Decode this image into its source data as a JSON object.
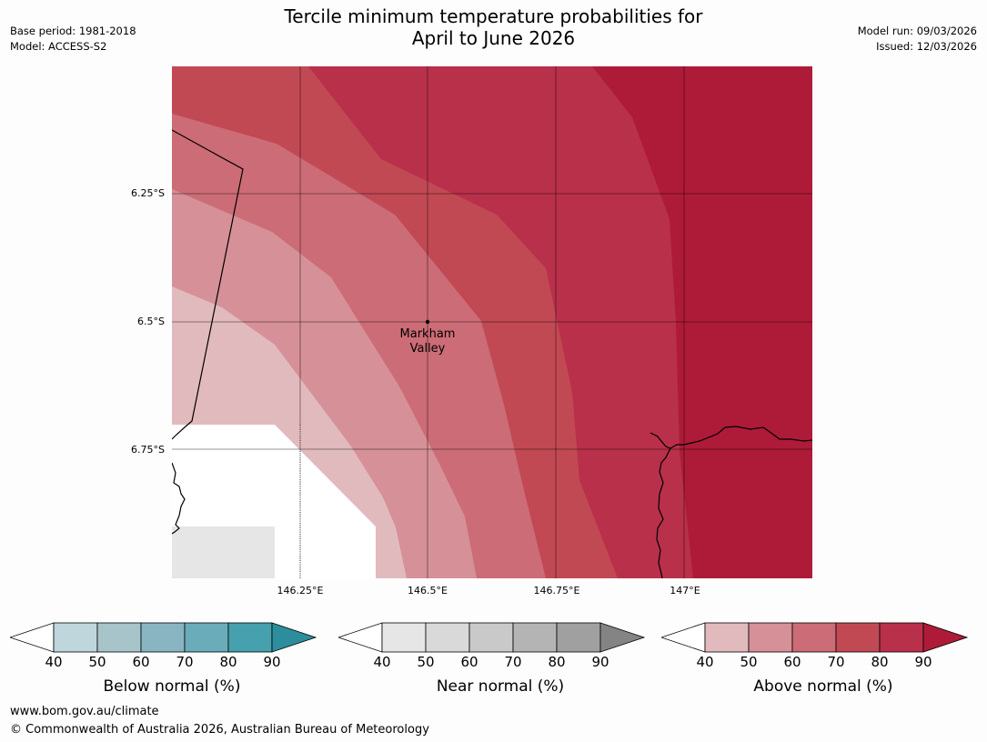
{
  "title_line1": "Tercile minimum temperature probabilities for",
  "title_line2": "April to June 2026",
  "meta": {
    "base_period": "Base period: 1981-2018",
    "model": "Model: ACCESS-S2",
    "model_run": "Model run: 09/03/2026",
    "issued": "Issued: 12/03/2026"
  },
  "map": {
    "lat_labels": [
      "6.25°S",
      "6.5°S",
      "6.75°S"
    ],
    "lon_labels": [
      "146.25°E",
      "146.5°E",
      "146.75°E",
      "147°E"
    ],
    "place_line1": "Markham",
    "place_line2": "Valley"
  },
  "legends": [
    {
      "label": "Below normal (%)",
      "ticks": [
        "40",
        "50",
        "60",
        "70",
        "80",
        "90"
      ],
      "colors": [
        "#ffffff",
        "#bfd6dc",
        "#a6c4ca",
        "#89b5c2",
        "#6aacb9",
        "#46a0ad",
        "#2c8e9c"
      ]
    },
    {
      "label": "Near normal (%)",
      "ticks": [
        "40",
        "50",
        "60",
        "70",
        "80",
        "90"
      ],
      "colors": [
        "#ffffff",
        "#e6e6e6",
        "#d9d9d9",
        "#c9c9c9",
        "#b4b4b4",
        "#a0a0a0",
        "#848484"
      ]
    },
    {
      "label": "Above normal (%)",
      "ticks": [
        "40",
        "50",
        "60",
        "70",
        "80",
        "90"
      ],
      "colors": [
        "#ffffff",
        "#e1babe",
        "#d69098",
        "#cc6c76",
        "#c14954",
        "#b9304a",
        "#ae1b38"
      ]
    }
  ],
  "footer": {
    "url": "www.bom.gov.au/climate",
    "copyright": "© Commonwealth of Australia 2026, Australian Bureau of Meteorology"
  }
}
